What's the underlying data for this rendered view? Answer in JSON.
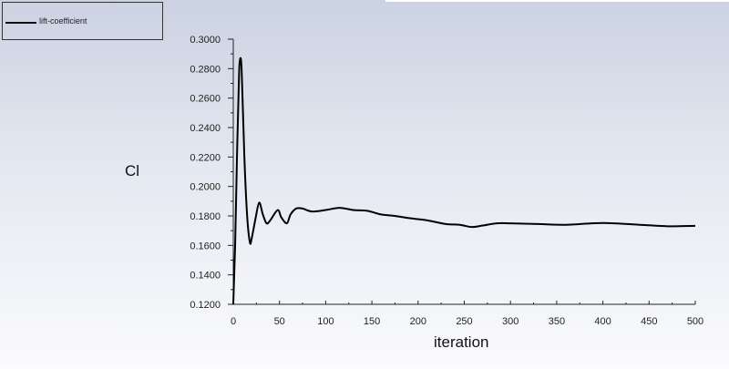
{
  "chart_data": {
    "type": "line",
    "title": "",
    "xlabel": "iteration",
    "ylabel": "Cl",
    "xlim": [
      0,
      500
    ],
    "ylim": [
      0.12,
      0.3
    ],
    "xticks": [
      "0",
      "50",
      "100",
      "150",
      "200",
      "250",
      "300",
      "350",
      "400",
      "450",
      "500"
    ],
    "yticks": [
      "0.1200",
      "0.1400",
      "0.1600",
      "0.1800",
      "0.2000",
      "0.2200",
      "0.2400",
      "0.2600",
      "0.2800",
      "0.3000"
    ],
    "grid": false,
    "legend_position": "top-left",
    "series": [
      {
        "name": "lift-coefficient",
        "color": "#000000",
        "x": [
          0,
          2,
          4,
          6,
          7,
          9,
          12,
          15,
          18,
          20,
          24,
          28,
          32,
          36,
          40,
          48,
          52,
          58,
          62,
          68,
          75,
          85,
          100,
          115,
          130,
          145,
          160,
          175,
          190,
          210,
          230,
          245,
          258,
          270,
          285,
          300,
          330,
          360,
          400,
          440,
          470,
          500
        ],
        "y": [
          0.12,
          0.16,
          0.22,
          0.27,
          0.285,
          0.28,
          0.22,
          0.18,
          0.162,
          0.165,
          0.178,
          0.189,
          0.181,
          0.175,
          0.177,
          0.184,
          0.179,
          0.175,
          0.181,
          0.185,
          0.185,
          0.183,
          0.184,
          0.1855,
          0.184,
          0.1835,
          0.181,
          0.18,
          0.1785,
          0.177,
          0.1745,
          0.174,
          0.1725,
          0.1735,
          0.175,
          0.175,
          0.1745,
          0.174,
          0.1752,
          0.174,
          0.173,
          0.1733
        ]
      }
    ]
  }
}
